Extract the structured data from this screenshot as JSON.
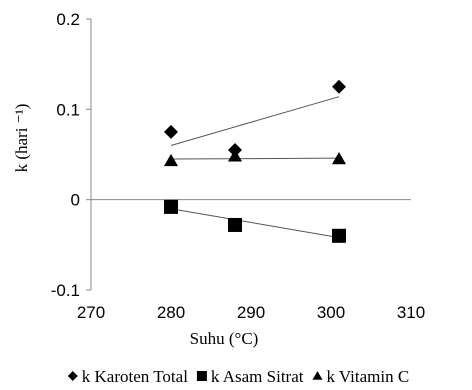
{
  "chart_data": {
    "type": "scatter",
    "xlabel": "Suhu (°C)",
    "ylabel": "k (hari ⁻¹)",
    "xlim": [
      270,
      310
    ],
    "ylim": [
      -0.1,
      0.2
    ],
    "x_ticks": [
      "270",
      "280",
      "290",
      "300",
      "310"
    ],
    "y_ticks": [
      "-0.1",
      "0",
      "0.1",
      "0.2"
    ],
    "x_tick_values": [
      270,
      280,
      290,
      300,
      310
    ],
    "y_tick_values": [
      -0.1,
      0,
      0.1,
      0.2
    ],
    "grid": false,
    "legend_position": "bottom",
    "series": [
      {
        "name": "k Karoten Total",
        "marker": "diamond",
        "points": [
          [
            280,
            0.075
          ],
          [
            288,
            0.055
          ],
          [
            301,
            0.125
          ]
        ],
        "trendline": [
          [
            280,
            0.06
          ],
          [
            301,
            0.114
          ]
        ]
      },
      {
        "name": "k Asam Sitrat",
        "marker": "square",
        "points": [
          [
            280,
            -0.008
          ],
          [
            288,
            -0.028
          ],
          [
            301,
            -0.04
          ]
        ],
        "trendline": [
          [
            280,
            -0.01
          ],
          [
            301,
            -0.042
          ]
        ]
      },
      {
        "name": "k Vitamin C",
        "marker": "triangle",
        "points": [
          [
            280,
            0.043
          ],
          [
            288,
            0.048
          ],
          [
            301,
            0.045
          ]
        ],
        "trendline": [
          [
            280,
            0.045
          ],
          [
            301,
            0.046
          ]
        ]
      }
    ]
  }
}
